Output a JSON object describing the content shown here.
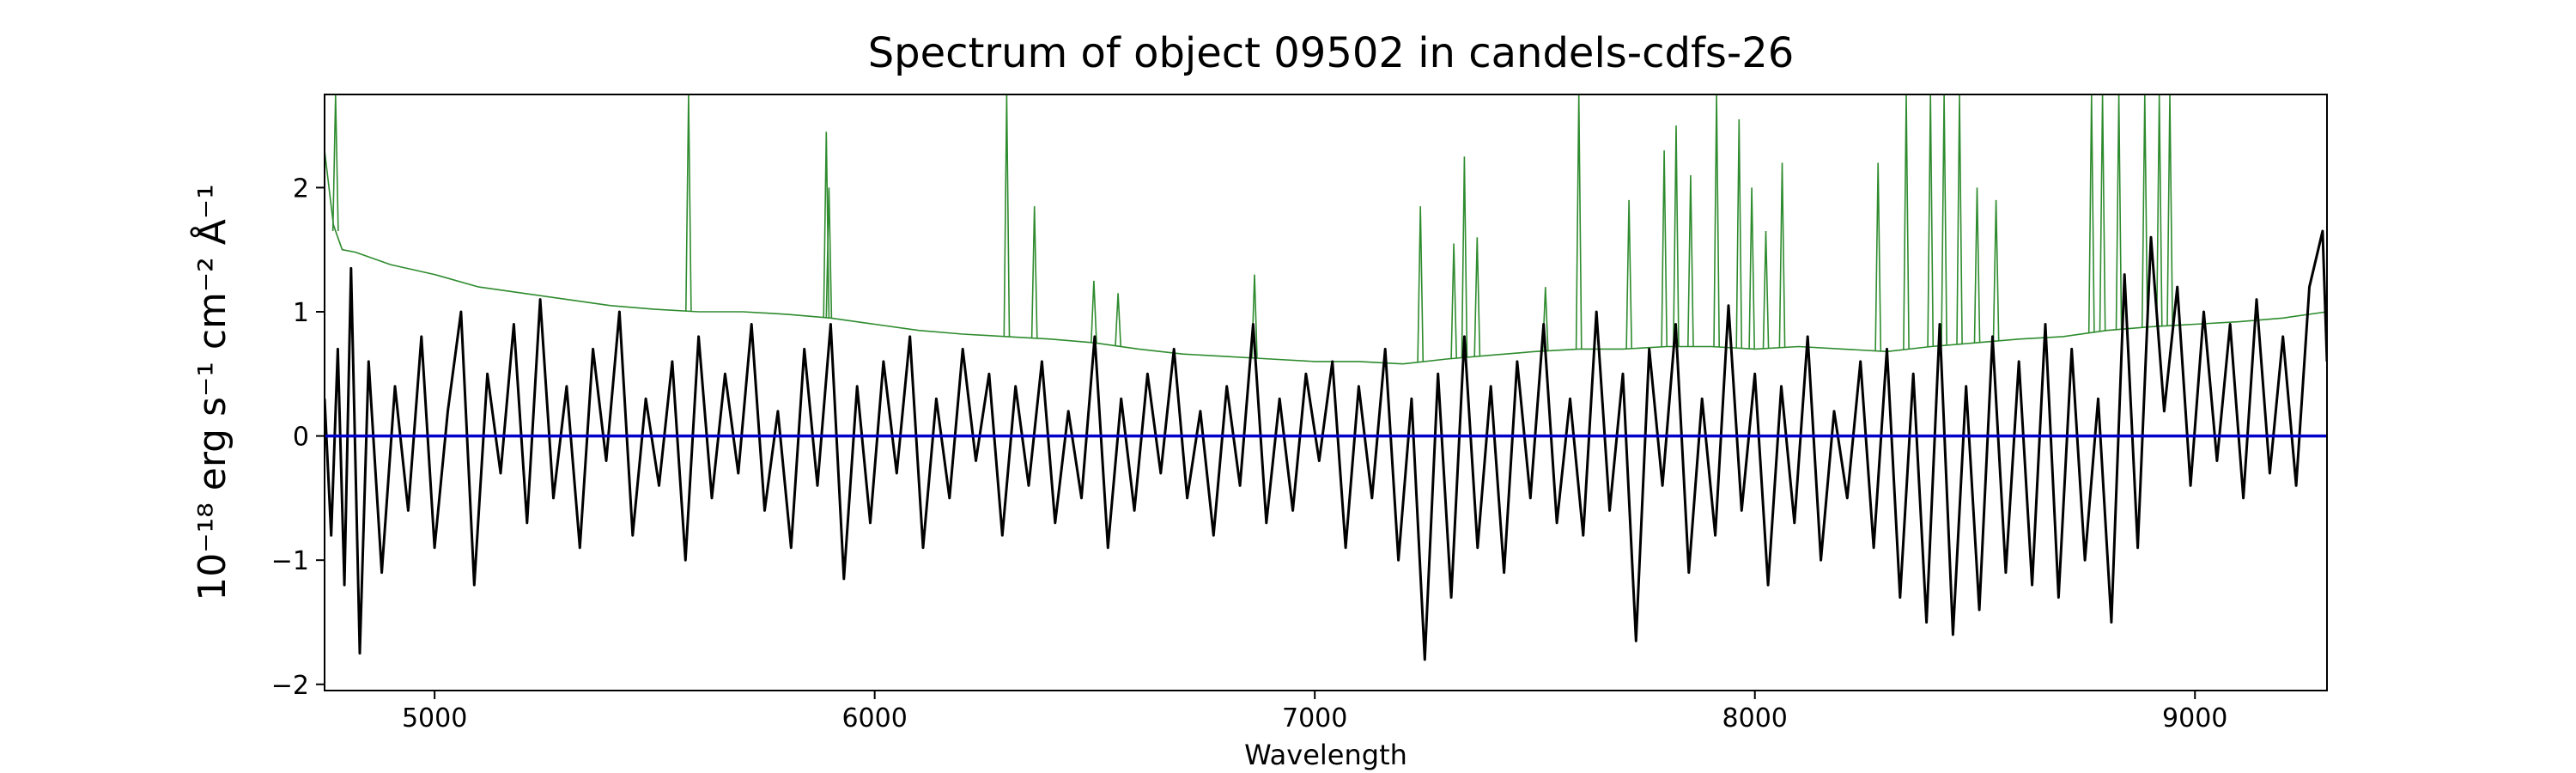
{
  "chart_data": {
    "type": "line",
    "title": "Spectrum of object 09502 in candels-cdfs-26",
    "xlabel": "Wavelength",
    "ylabel": "10⁻¹⁸ erg s⁻¹ cm⁻² Å⁻¹",
    "xlim": [
      4750,
      9300
    ],
    "ylim": [
      -2.05,
      2.75
    ],
    "xticks": [
      5000,
      6000,
      7000,
      8000,
      9000
    ],
    "yticks": [
      -2,
      -1,
      0,
      1,
      2
    ],
    "xtick_labels": [
      "5000",
      "6000",
      "7000",
      "8000",
      "9000"
    ],
    "ytick_labels": [
      "−2",
      "−1",
      "0",
      "1",
      "2"
    ],
    "grid": false,
    "legend": false,
    "series": [
      {
        "role": "noise",
        "color": "#2e8b2e",
        "x": [
          4750,
          4770,
          4790,
          4820,
          4900,
          5000,
          5100,
          5200,
          5300,
          5400,
          5500,
          5600,
          5700,
          5800,
          5900,
          6000,
          6100,
          6200,
          6300,
          6400,
          6500,
          6600,
          6700,
          6800,
          6900,
          7000,
          7100,
          7200,
          7300,
          7400,
          7500,
          7600,
          7700,
          7800,
          7900,
          8000,
          8100,
          8200,
          8300,
          8400,
          8500,
          8600,
          8700,
          8800,
          8900,
          9000,
          9100,
          9200,
          9300
        ],
        "y": [
          2.3,
          1.7,
          1.5,
          1.48,
          1.38,
          1.3,
          1.2,
          1.15,
          1.1,
          1.05,
          1.02,
          1.0,
          1.0,
          0.98,
          0.95,
          0.9,
          0.85,
          0.82,
          0.8,
          0.78,
          0.75,
          0.7,
          0.66,
          0.64,
          0.62,
          0.6,
          0.6,
          0.58,
          0.62,
          0.65,
          0.68,
          0.7,
          0.7,
          0.72,
          0.72,
          0.7,
          0.72,
          0.7,
          0.68,
          0.72,
          0.75,
          0.78,
          0.8,
          0.85,
          0.88,
          0.9,
          0.92,
          0.95,
          1.0
        ],
        "spikes": [
          {
            "x": 4775,
            "peak": 2.75
          },
          {
            "x": 5577,
            "peak": 2.75
          },
          {
            "x": 5890,
            "peak": 2.45
          },
          {
            "x": 5896,
            "peak": 2.0
          },
          {
            "x": 6300,
            "peak": 2.75
          },
          {
            "x": 6363,
            "peak": 1.85
          },
          {
            "x": 6498,
            "peak": 1.25
          },
          {
            "x": 6553,
            "peak": 1.15
          },
          {
            "x": 6863,
            "peak": 1.3
          },
          {
            "x": 7240,
            "peak": 1.85
          },
          {
            "x": 7316,
            "peak": 1.55
          },
          {
            "x": 7340,
            "peak": 2.25
          },
          {
            "x": 7369,
            "peak": 1.6
          },
          {
            "x": 7524,
            "peak": 1.2
          },
          {
            "x": 7600,
            "peak": 2.75
          },
          {
            "x": 7714,
            "peak": 1.9
          },
          {
            "x": 7794,
            "peak": 2.3
          },
          {
            "x": 7821,
            "peak": 2.5
          },
          {
            "x": 7854,
            "peak": 2.1
          },
          {
            "x": 7913,
            "peak": 2.75
          },
          {
            "x": 7964,
            "peak": 2.55
          },
          {
            "x": 7993,
            "peak": 2.0
          },
          {
            "x": 8025,
            "peak": 1.65
          },
          {
            "x": 8062,
            "peak": 2.2
          },
          {
            "x": 8280,
            "peak": 2.2
          },
          {
            "x": 8344,
            "peak": 2.75
          },
          {
            "x": 8399,
            "peak": 2.75
          },
          {
            "x": 8430,
            "peak": 2.75
          },
          {
            "x": 8465,
            "peak": 2.75
          },
          {
            "x": 8505,
            "peak": 2.0
          },
          {
            "x": 8548,
            "peak": 1.9
          },
          {
            "x": 8765,
            "peak": 2.75
          },
          {
            "x": 8790,
            "peak": 2.75
          },
          {
            "x": 8827,
            "peak": 2.75
          },
          {
            "x": 8886,
            "peak": 2.75
          },
          {
            "x": 8919,
            "peak": 2.75
          },
          {
            "x": 8943,
            "peak": 2.75
          }
        ]
      },
      {
        "role": "flux",
        "color": "#000000",
        "x": [
          4750,
          4765,
          4780,
          4795,
          4810,
          4830,
          4850,
          4880,
          4910,
          4940,
          4970,
          5000,
          5030,
          5060,
          5090,
          5120,
          5150,
          5180,
          5210,
          5240,
          5270,
          5300,
          5330,
          5360,
          5390,
          5420,
          5450,
          5480,
          5510,
          5540,
          5570,
          5600,
          5630,
          5660,
          5690,
          5720,
          5750,
          5780,
          5810,
          5840,
          5870,
          5900,
          5930,
          5960,
          5990,
          6020,
          6050,
          6080,
          6110,
          6140,
          6170,
          6200,
          6230,
          6260,
          6290,
          6320,
          6350,
          6380,
          6410,
          6440,
          6470,
          6500,
          6530,
          6560,
          6590,
          6620,
          6650,
          6680,
          6710,
          6740,
          6770,
          6800,
          6830,
          6860,
          6890,
          6920,
          6950,
          6980,
          7010,
          7040,
          7070,
          7100,
          7130,
          7160,
          7190,
          7220,
          7250,
          7280,
          7310,
          7340,
          7370,
          7400,
          7430,
          7460,
          7490,
          7520,
          7550,
          7580,
          7610,
          7640,
          7670,
          7700,
          7730,
          7760,
          7790,
          7820,
          7850,
          7880,
          7910,
          7940,
          7970,
          8000,
          8030,
          8060,
          8090,
          8120,
          8150,
          8180,
          8210,
          8240,
          8270,
          8300,
          8330,
          8360,
          8390,
          8420,
          8450,
          8480,
          8510,
          8540,
          8570,
          8600,
          8630,
          8660,
          8690,
          8720,
          8750,
          8780,
          8810,
          8840,
          8870,
          8900,
          8930,
          8960,
          8990,
          9020,
          9050,
          9080,
          9110,
          9140,
          9170,
          9200,
          9230,
          9260,
          9290,
          9300
        ],
        "y": [
          0.3,
          -0.8,
          0.7,
          -1.2,
          1.35,
          -1.75,
          0.6,
          -1.1,
          0.4,
          -0.6,
          0.8,
          -0.9,
          0.2,
          1.0,
          -1.2,
          0.5,
          -0.3,
          0.9,
          -0.7,
          1.1,
          -0.5,
          0.4,
          -0.9,
          0.7,
          -0.2,
          1.0,
          -0.8,
          0.3,
          -0.4,
          0.6,
          -1.0,
          0.8,
          -0.5,
          0.5,
          -0.3,
          0.9,
          -0.6,
          0.2,
          -0.9,
          0.7,
          -0.4,
          0.9,
          -1.15,
          0.4,
          -0.7,
          0.6,
          -0.3,
          0.8,
          -0.9,
          0.3,
          -0.5,
          0.7,
          -0.2,
          0.5,
          -0.8,
          0.4,
          -0.4,
          0.6,
          -0.7,
          0.2,
          -0.5,
          0.8,
          -0.9,
          0.3,
          -0.6,
          0.5,
          -0.3,
          0.7,
          -0.5,
          0.2,
          -0.8,
          0.4,
          -0.4,
          0.9,
          -0.7,
          0.3,
          -0.6,
          0.5,
          -0.2,
          0.6,
          -0.9,
          0.4,
          -0.5,
          0.7,
          -1.0,
          0.3,
          -1.8,
          0.5,
          -1.3,
          0.8,
          -0.9,
          0.4,
          -1.1,
          0.6,
          -0.5,
          0.9,
          -0.7,
          0.3,
          -0.8,
          1.0,
          -0.6,
          0.5,
          -1.65,
          0.7,
          -0.4,
          0.9,
          -1.1,
          0.3,
          -0.8,
          1.05,
          -0.6,
          0.5,
          -1.2,
          0.4,
          -0.7,
          0.8,
          -1.0,
          0.2,
          -0.5,
          0.6,
          -0.9,
          0.7,
          -1.3,
          0.5,
          -1.5,
          0.9,
          -1.6,
          0.4,
          -1.4,
          0.8,
          -1.1,
          0.6,
          -1.2,
          0.9,
          -1.3,
          0.7,
          -1.0,
          0.3,
          -1.5,
          1.3,
          -0.9,
          1.6,
          0.2,
          1.2,
          -0.4,
          1.0,
          -0.2,
          0.9,
          -0.5,
          1.1,
          -0.3,
          0.8,
          -0.4,
          1.2,
          1.65,
          0.6
        ]
      },
      {
        "role": "zero-line",
        "color": "#0000cc",
        "x": [
          4750,
          9300
        ],
        "y": [
          0,
          0
        ]
      }
    ]
  }
}
